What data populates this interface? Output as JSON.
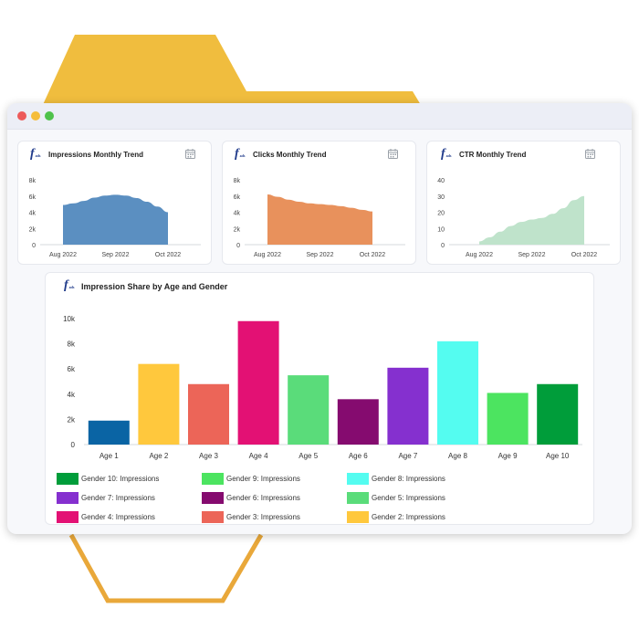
{
  "window": {
    "controls": [
      "close",
      "minimize",
      "maximize"
    ],
    "colors": {
      "close": "#ed5a5a",
      "minimize": "#f5bd3b",
      "maximize": "#4fc24b"
    }
  },
  "logo": {
    "mark": "f",
    "sub": "ads"
  },
  "icons": {
    "card_action": "calendar-icon"
  },
  "cards": [
    {
      "title": "Impressions Monthly Trend",
      "color": "#5b8fc1"
    },
    {
      "title": "Clicks Monthly Trend",
      "color": "#e8915c"
    },
    {
      "title": "CTR Monthly Trend",
      "color": "#bfe3cb"
    }
  ],
  "big_card": {
    "title": "Impression Share by Age and Gender"
  },
  "chart_data": [
    {
      "type": "area",
      "title": "Impressions Monthly Trend",
      "x_ticks": [
        "Aug 2022",
        "Sep 2022",
        "Oct 2022"
      ],
      "y_ticks": [
        "0",
        "2k",
        "4k",
        "6k",
        "8k"
      ],
      "ylim": [
        0,
        8000
      ],
      "x": [
        0,
        0.1,
        0.2,
        0.3,
        0.4,
        0.5,
        0.6,
        0.7,
        0.8,
        0.9,
        1
      ],
      "values": [
        4900,
        5100,
        5400,
        5800,
        6050,
        6150,
        6050,
        5750,
        5300,
        4700,
        4000
      ]
    },
    {
      "type": "area",
      "title": "Clicks Monthly Trend",
      "x_ticks": [
        "Aug 2022",
        "Sep 2022",
        "Oct 2022"
      ],
      "y_ticks": [
        "0",
        "2k",
        "4k",
        "6k",
        "8k"
      ],
      "ylim": [
        0,
        8000
      ],
      "x": [
        0,
        0.1,
        0.2,
        0.3,
        0.4,
        0.5,
        0.6,
        0.7,
        0.8,
        0.9,
        1
      ],
      "values": [
        6200,
        5900,
        5550,
        5300,
        5100,
        5000,
        4900,
        4750,
        4550,
        4300,
        4100
      ]
    },
    {
      "type": "area",
      "title": "CTR Monthly Trend",
      "x_ticks": [
        "Aug 2022",
        "Sep 2022",
        "Oct 2022"
      ],
      "y_ticks": [
        "0",
        "10",
        "20",
        "30",
        "40"
      ],
      "ylim": [
        0,
        40
      ],
      "x": [
        0,
        0.1,
        0.2,
        0.3,
        0.4,
        0.5,
        0.6,
        0.7,
        0.8,
        0.9,
        1
      ],
      "values": [
        2,
        4.5,
        8,
        11.5,
        14,
        15.5,
        16.5,
        19,
        22.5,
        27.5,
        30
      ]
    },
    {
      "type": "bar",
      "title": "Impression Share by Age and Gender",
      "categories": [
        "Age 1",
        "Age 2",
        "Age 3",
        "Age 4",
        "Age 5",
        "Age 6",
        "Age 7",
        "Age 8",
        "Age 9",
        "Age 10"
      ],
      "values": [
        1900,
        6400,
        4800,
        9800,
        5500,
        3600,
        6100,
        8200,
        4100,
        4800
      ],
      "colors": [
        "#0a64a4",
        "#ffc83d",
        "#ec6558",
        "#e31174",
        "#5adc7a",
        "#850b6f",
        "#8530cf",
        "#54fcf0",
        "#4ce460",
        "#009d3a"
      ],
      "y_ticks": [
        "0",
        "2k",
        "4k",
        "6k",
        "8k",
        "10k"
      ],
      "ylim": [
        0,
        10000
      ],
      "legend": [
        {
          "label": "Gender 10: Impressions",
          "color": "#009d3a"
        },
        {
          "label": "Gender 9: Impressions",
          "color": "#4ce460"
        },
        {
          "label": "Gender 8: Impressions",
          "color": "#54fcf0"
        },
        {
          "label": "Gender 7: Impressions",
          "color": "#8530cf"
        },
        {
          "label": "Gender 6: Impressions",
          "color": "#850b6f"
        },
        {
          "label": "Gender 5: Impressions",
          "color": "#5adc7a"
        },
        {
          "label": "Gender 4: Impressions",
          "color": "#e31174"
        },
        {
          "label": "Gender 3: Impressions",
          "color": "#ec6558"
        },
        {
          "label": "Gender 2: Impressions",
          "color": "#ffc83d"
        }
      ]
    }
  ]
}
